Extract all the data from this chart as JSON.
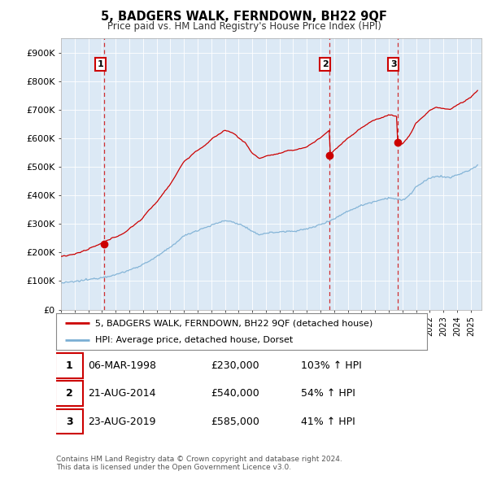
{
  "title": "5, BADGERS WALK, FERNDOWN, BH22 9QF",
  "subtitle": "Price paid vs. HM Land Registry's House Price Index (HPI)",
  "sale_label": "5, BADGERS WALK, FERNDOWN, BH22 9QF (detached house)",
  "hpi_label": "HPI: Average price, detached house, Dorset",
  "sale_color": "#cc0000",
  "hpi_color": "#7bafd4",
  "chart_bg": "#dce9f5",
  "annotation_border_color": "#cc0000",
  "sales": [
    {
      "date_num": 1998.18,
      "price": 230000,
      "label": "1"
    },
    {
      "date_num": 2014.64,
      "price": 540000,
      "label": "2"
    },
    {
      "date_num": 2019.64,
      "price": 585000,
      "label": "3"
    }
  ],
  "table_rows": [
    {
      "num": "1",
      "date": "06-MAR-1998",
      "price": "£230,000",
      "hpi_pct": "103% ↑ HPI"
    },
    {
      "num": "2",
      "date": "21-AUG-2014",
      "price": "£540,000",
      "hpi_pct": "54% ↑ HPI"
    },
    {
      "num": "3",
      "date": "23-AUG-2019",
      "price": "£585,000",
      "hpi_pct": "41% ↑ HPI"
    }
  ],
  "footer": "Contains HM Land Registry data © Crown copyright and database right 2024.\nThis data is licensed under the Open Government Licence v3.0.",
  "ylim": [
    0,
    950000
  ],
  "yticks": [
    0,
    100000,
    200000,
    300000,
    400000,
    500000,
    600000,
    700000,
    800000,
    900000
  ],
  "background_color": "#ffffff",
  "grid_color": "#ffffff"
}
